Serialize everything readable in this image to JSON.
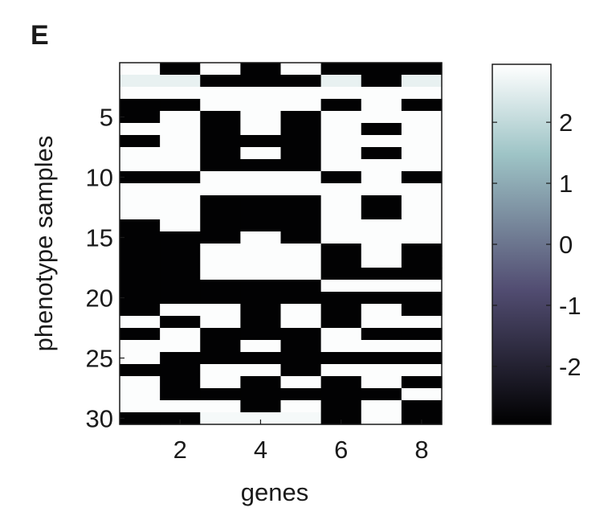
{
  "panel_label": "E",
  "chart_data": [
    {
      "type": "heatmap",
      "xlabel": "genes",
      "ylabel": "phenotype samples",
      "x_ticks": [
        2,
        4,
        6,
        8
      ],
      "y_ticks": [
        5,
        10,
        15,
        20,
        25,
        30
      ],
      "columns": [
        1,
        2,
        3,
        4,
        5,
        6,
        7,
        8
      ],
      "rows": [
        1,
        2,
        3,
        4,
        5,
        6,
        7,
        8,
        9,
        10,
        11,
        12,
        13,
        14,
        15,
        16,
        17,
        18,
        19,
        20,
        21,
        22,
        23,
        24,
        25,
        26,
        27,
        28,
        29,
        30
      ],
      "values": [
        [
          2.9,
          -2.9,
          2.9,
          -2.9,
          2.9,
          -2.9,
          -2.9,
          -2.9
        ],
        [
          2.6,
          2.6,
          -2.9,
          -2.9,
          -2.9,
          2.6,
          -2.9,
          2.6
        ],
        [
          2.9,
          2.9,
          2.9,
          2.9,
          2.9,
          2.9,
          2.9,
          2.9
        ],
        [
          -2.9,
          -2.9,
          2.9,
          2.9,
          2.9,
          -2.9,
          2.9,
          -2.9
        ],
        [
          -2.9,
          2.9,
          -2.9,
          2.9,
          -2.9,
          2.9,
          2.9,
          2.9
        ],
        [
          2.9,
          2.9,
          -2.9,
          2.9,
          -2.9,
          2.9,
          -2.9,
          2.9
        ],
        [
          -2.9,
          2.9,
          -2.9,
          -2.9,
          -2.9,
          2.9,
          2.9,
          2.9
        ],
        [
          2.9,
          2.9,
          -2.9,
          2.9,
          -2.9,
          2.9,
          -2.9,
          2.9
        ],
        [
          2.9,
          2.9,
          -2.9,
          -2.9,
          -2.9,
          2.9,
          2.9,
          2.9
        ],
        [
          -2.9,
          -2.9,
          2.9,
          2.9,
          2.9,
          -2.9,
          2.9,
          -2.9
        ],
        [
          2.9,
          2.9,
          2.9,
          2.9,
          2.9,
          2.9,
          2.9,
          2.9
        ],
        [
          2.9,
          2.9,
          -2.9,
          -2.9,
          -2.9,
          2.9,
          -2.9,
          2.9
        ],
        [
          2.9,
          2.9,
          -2.9,
          -2.9,
          -2.9,
          2.9,
          -2.9,
          2.9
        ],
        [
          -2.9,
          2.9,
          -2.9,
          -2.9,
          -2.9,
          2.9,
          2.9,
          2.9
        ],
        [
          -2.9,
          -2.9,
          -2.9,
          2.9,
          -2.9,
          2.9,
          2.9,
          2.9
        ],
        [
          -2.9,
          -2.9,
          2.9,
          2.9,
          2.9,
          -2.9,
          2.9,
          -2.9
        ],
        [
          -2.9,
          -2.9,
          2.9,
          2.9,
          2.9,
          -2.9,
          2.9,
          -2.9
        ],
        [
          -2.9,
          -2.9,
          2.9,
          2.9,
          2.9,
          -2.9,
          -2.9,
          -2.9
        ],
        [
          -2.9,
          -2.9,
          -2.9,
          -2.9,
          -2.9,
          2.9,
          2.9,
          2.9
        ],
        [
          -2.9,
          -2.9,
          -2.9,
          -2.9,
          -2.9,
          -2.9,
          -2.9,
          -2.9
        ],
        [
          -2.9,
          2.9,
          2.9,
          -2.9,
          2.9,
          -2.9,
          2.9,
          -2.9
        ],
        [
          2.9,
          -2.9,
          2.9,
          -2.9,
          2.9,
          -2.9,
          2.9,
          2.9
        ],
        [
          -2.9,
          2.9,
          -2.9,
          -2.9,
          -2.9,
          2.9,
          -2.9,
          -2.9
        ],
        [
          2.9,
          2.9,
          -2.9,
          2.9,
          -2.9,
          2.9,
          2.9,
          2.9
        ],
        [
          2.9,
          -2.9,
          -2.9,
          -2.9,
          -2.9,
          -2.9,
          -2.9,
          -2.9
        ],
        [
          -2.9,
          -2.9,
          2.9,
          2.9,
          -2.9,
          2.9,
          2.9,
          2.9
        ],
        [
          2.9,
          -2.9,
          2.9,
          -2.9,
          2.9,
          -2.9,
          2.9,
          -2.9
        ],
        [
          2.9,
          -2.9,
          -2.9,
          -2.9,
          -2.9,
          -2.9,
          -2.9,
          2.9
        ],
        [
          2.9,
          2.9,
          2.9,
          -2.9,
          2.9,
          -2.9,
          2.9,
          -2.9
        ],
        [
          -2.9,
          -2.9,
          2.8,
          2.8,
          2.8,
          -2.9,
          2.9,
          -2.9
        ]
      ]
    },
    {
      "type": "colorbar",
      "range": [
        -2.95,
        2.95
      ],
      "ticks": [
        -2,
        -1,
        0,
        1,
        2
      ],
      "colormap": "bone",
      "colors": {
        "low": "#000000",
        "mid_low": "#524d72",
        "mid_high": "#9ec4c6",
        "high": "#ffffff"
      }
    }
  ]
}
